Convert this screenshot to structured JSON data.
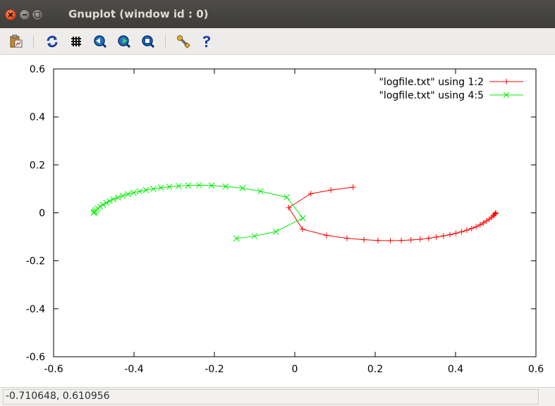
{
  "window": {
    "title": "Gnuplot (window id : 0)"
  },
  "toolbar": {
    "items": [
      {
        "icon": "copy-to-clipboard-icon"
      },
      {
        "icon": "replot-icon"
      },
      {
        "icon": "toggle-grid-icon"
      },
      {
        "icon": "previous-zoom-icon"
      },
      {
        "icon": "next-zoom-icon"
      },
      {
        "icon": "autoscale-icon"
      },
      {
        "icon": "settings-icon"
      },
      {
        "icon": "help-icon"
      }
    ]
  },
  "status": {
    "coordinates": "-0.710648,  0.610956"
  },
  "chart_data": {
    "type": "line",
    "title": "",
    "xlabel": "",
    "ylabel": "",
    "xlim": [
      -0.6,
      0.6
    ],
    "ylim": [
      -0.6,
      0.6
    ],
    "xticks": [
      "-0.6",
      "-0.4",
      "-0.2",
      "0",
      "0.2",
      "0.4",
      "0.6"
    ],
    "yticks": [
      "0.6",
      "0.4",
      "0.2",
      "0",
      "-0.2",
      "-0.4",
      "-0.6"
    ],
    "grid": false,
    "legend_position": "top-right",
    "series": [
      {
        "name": "\"logfile.txt\" using 1:2",
        "color": "#ff0000",
        "marker": "plus",
        "x": [
          0.145,
          0.09,
          0.04,
          -0.015,
          0.019,
          0.079,
          0.13,
          0.172,
          0.207,
          0.238,
          0.265,
          0.289,
          0.312,
          0.333,
          0.352,
          0.37,
          0.386,
          0.401,
          0.415,
          0.428,
          0.44,
          0.451,
          0.461,
          0.469,
          0.477,
          0.484,
          0.49,
          0.494,
          0.497,
          0.499,
          0.5
        ],
        "y": [
          0.107,
          0.095,
          0.08,
          0.022,
          -0.068,
          -0.094,
          -0.106,
          -0.112,
          -0.115,
          -0.116,
          -0.115,
          -0.113,
          -0.11,
          -0.106,
          -0.101,
          -0.096,
          -0.091,
          -0.085,
          -0.079,
          -0.072,
          -0.065,
          -0.058,
          -0.05,
          -0.042,
          -0.034,
          -0.026,
          -0.018,
          -0.012,
          -0.007,
          -0.003,
          0.0
        ]
      },
      {
        "name": "\"logfile.txt\" using 4:5",
        "color": "#00ee00",
        "marker": "cross",
        "x": [
          -0.145,
          -0.1,
          -0.047,
          0.02,
          -0.02,
          -0.085,
          -0.13,
          -0.172,
          -0.207,
          -0.238,
          -0.265,
          -0.289,
          -0.312,
          -0.333,
          -0.352,
          -0.37,
          -0.386,
          -0.401,
          -0.415,
          -0.428,
          -0.44,
          -0.451,
          -0.461,
          -0.469,
          -0.477,
          -0.484,
          -0.49,
          -0.494,
          -0.497,
          -0.499,
          -0.5
        ],
        "y": [
          -0.107,
          -0.097,
          -0.078,
          -0.022,
          0.065,
          0.09,
          0.103,
          0.11,
          0.114,
          0.115,
          0.114,
          0.112,
          0.109,
          0.105,
          0.1,
          0.095,
          0.09,
          0.084,
          0.078,
          0.071,
          0.064,
          0.057,
          0.049,
          0.042,
          0.034,
          0.026,
          0.018,
          0.012,
          0.007,
          0.003,
          0.0
        ]
      }
    ]
  }
}
